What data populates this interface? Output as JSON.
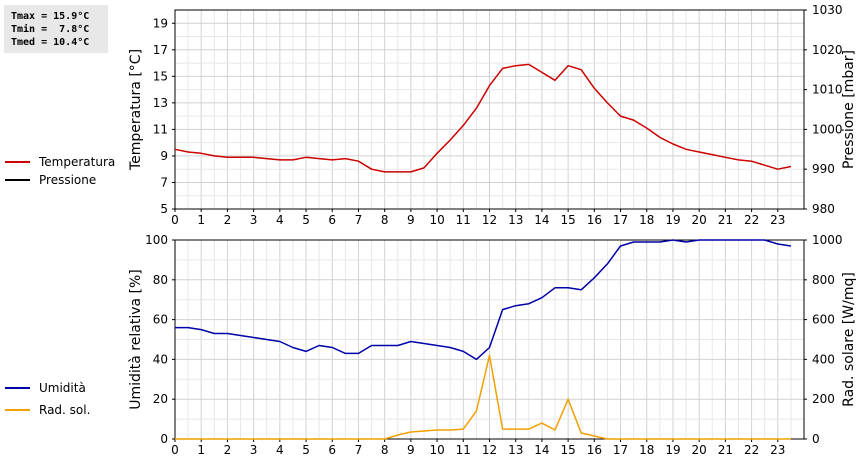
{
  "stats": {
    "tmax": "Tmax = 15.9°C",
    "tmin": "Tmin =  7.8°C",
    "tmed": "Tmed = 10.4°C"
  },
  "legend_top": [
    {
      "label": "Temperatura",
      "color": "#cc0000"
    },
    {
      "label": "Pressione",
      "color": "#000000"
    }
  ],
  "legend_bottom": [
    {
      "label": "Umidità",
      "color": "#0000aa"
    },
    {
      "label": "Rad. sol.",
      "color": "#f0a000"
    }
  ],
  "chart_data": [
    {
      "type": "line",
      "ylabel": "Temperatura [°C]",
      "y2label": "Pressione [mbar]",
      "xlim": [
        0,
        24
      ],
      "ylim": [
        5,
        20
      ],
      "y2lim": [
        980,
        1030
      ],
      "x_ticks": [
        0,
        1,
        2,
        3,
        4,
        5,
        6,
        7,
        8,
        9,
        10,
        11,
        12,
        13,
        14,
        15,
        16,
        17,
        18,
        19,
        20,
        21,
        22,
        23
      ],
      "y_ticks": [
        5,
        7,
        9,
        11,
        13,
        15,
        17,
        19
      ],
      "y2_ticks": [
        980,
        990,
        1000,
        1010,
        1020,
        1030
      ],
      "grid": true,
      "series": [
        {
          "name": "Temperatura",
          "color": "#cc0000",
          "x": [
            0,
            0.5,
            1,
            1.5,
            2,
            2.5,
            3,
            3.5,
            4,
            4.5,
            5,
            5.5,
            6,
            6.5,
            7,
            7.5,
            8,
            8.5,
            9,
            9.5,
            10,
            10.5,
            11,
            11.5,
            12,
            12.5,
            13,
            13.5,
            14,
            14.5,
            15,
            15.5,
            16,
            16.5,
            17,
            17.5,
            18,
            18.5,
            19,
            19.5,
            20,
            20.5,
            21,
            21.5,
            22,
            22.5,
            23,
            23.5
          ],
          "y": [
            9.5,
            9.3,
            9.2,
            9.0,
            8.9,
            8.9,
            8.9,
            8.8,
            8.7,
            8.7,
            8.9,
            8.8,
            8.7,
            8.8,
            8.6,
            8.0,
            7.8,
            7.8,
            7.8,
            8.1,
            9.2,
            10.2,
            11.3,
            12.6,
            14.3,
            15.6,
            15.8,
            15.9,
            15.3,
            14.7,
            15.8,
            15.5,
            14.1,
            13.0,
            12.0,
            11.7,
            11.1,
            10.4,
            9.9,
            9.5,
            9.3,
            9.1,
            8.9,
            8.7,
            8.6,
            8.3,
            8.0,
            8.2
          ]
        }
      ]
    },
    {
      "type": "line",
      "ylabel": "Umidità relativa [%]",
      "y2label": "Rad. solare [W/mq]",
      "xlim": [
        0,
        24
      ],
      "ylim": [
        0,
        100
      ],
      "y2lim": [
        0,
        1000
      ],
      "x_ticks": [
        0,
        1,
        2,
        3,
        4,
        5,
        6,
        7,
        8,
        9,
        10,
        11,
        12,
        13,
        14,
        15,
        16,
        17,
        18,
        19,
        20,
        21,
        22,
        23
      ],
      "y_ticks": [
        0,
        20,
        40,
        60,
        80,
        100
      ],
      "y2_ticks": [
        0,
        200,
        400,
        600,
        800,
        1000
      ],
      "grid": true,
      "series": [
        {
          "name": "Umidità",
          "color": "#0000aa",
          "axis": "left",
          "x": [
            0,
            0.5,
            1,
            1.5,
            2,
            2.5,
            3,
            3.5,
            4,
            4.5,
            5,
            5.5,
            6,
            6.5,
            7,
            7.5,
            8,
            8.5,
            9,
            9.5,
            10,
            10.5,
            11,
            11.5,
            12,
            12.5,
            13,
            13.5,
            14,
            14.5,
            15,
            15.5,
            16,
            16.5,
            17,
            17.5,
            18,
            18.5,
            19,
            19.5,
            20,
            20.5,
            21,
            21.5,
            22,
            22.5,
            23,
            23.5
          ],
          "y": [
            56,
            56,
            55,
            53,
            53,
            52,
            51,
            50,
            49,
            46,
            44,
            47,
            46,
            43,
            43,
            47,
            47,
            47,
            49,
            48,
            47,
            46,
            44,
            40,
            46,
            65,
            67,
            68,
            71,
            76,
            76,
            75,
            81,
            88,
            97,
            99,
            99,
            99,
            100,
            99,
            100,
            100,
            100,
            100,
            100,
            100,
            98,
            97
          ]
        },
        {
          "name": "Rad. sol.",
          "color": "#f0a000",
          "axis": "right",
          "x": [
            0,
            0.5,
            1,
            1.5,
            2,
            2.5,
            3,
            3.5,
            4,
            4.5,
            5,
            5.5,
            6,
            6.5,
            7,
            7.5,
            8,
            8.5,
            9,
            9.5,
            10,
            10.5,
            11,
            11.5,
            12,
            12.5,
            13,
            13.5,
            14,
            14.5,
            15,
            15.5,
            16,
            16.5,
            17,
            17.5,
            18,
            18.5,
            19,
            19.5,
            20,
            20.5,
            21,
            21.5,
            22,
            22.5,
            23,
            23.5
          ],
          "y": [
            0,
            0,
            0,
            0,
            0,
            0,
            0,
            0,
            0,
            0,
            0,
            0,
            0,
            0,
            0,
            0,
            0,
            20,
            35,
            40,
            45,
            45,
            50,
            140,
            420,
            50,
            50,
            50,
            80,
            45,
            200,
            30,
            15,
            0,
            0,
            0,
            0,
            0,
            0,
            0,
            0,
            0,
            0,
            0,
            0,
            0,
            0,
            0
          ]
        }
      ]
    }
  ]
}
